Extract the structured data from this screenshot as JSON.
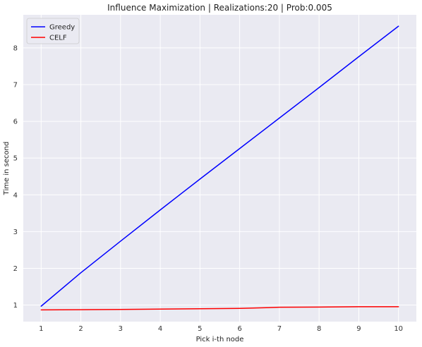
{
  "chart_data": {
    "type": "line",
    "title": "Influence Maximization | Realizations:20 | Prob:0.005",
    "xlabel": "Pick i-th node",
    "ylabel": "Time in second",
    "x": [
      1,
      2,
      3,
      4,
      5,
      6,
      7,
      8,
      9,
      10
    ],
    "xticks": [
      "1",
      "2",
      "3",
      "4",
      "5",
      "6",
      "7",
      "8",
      "9",
      "10"
    ],
    "yticks": [
      "1",
      "2",
      "3",
      "4",
      "5",
      "6",
      "7",
      "8"
    ],
    "xlim": [
      0.55,
      10.45
    ],
    "ylim": [
      0.55,
      8.9
    ],
    "grid": true,
    "legend_position": "top-left",
    "series": [
      {
        "name": "Greedy",
        "color": "#0000ff",
        "values": [
          0.97,
          1.88,
          2.74,
          3.59,
          4.43,
          5.26,
          6.09,
          6.92,
          7.76,
          8.59
        ]
      },
      {
        "name": "CELF",
        "color": "#ff0000",
        "values": [
          0.87,
          0.875,
          0.88,
          0.89,
          0.9,
          0.91,
          0.94,
          0.945,
          0.955,
          0.955
        ]
      }
    ],
    "background_color": "#eaeaf2",
    "grid_color": "#ffffff"
  }
}
